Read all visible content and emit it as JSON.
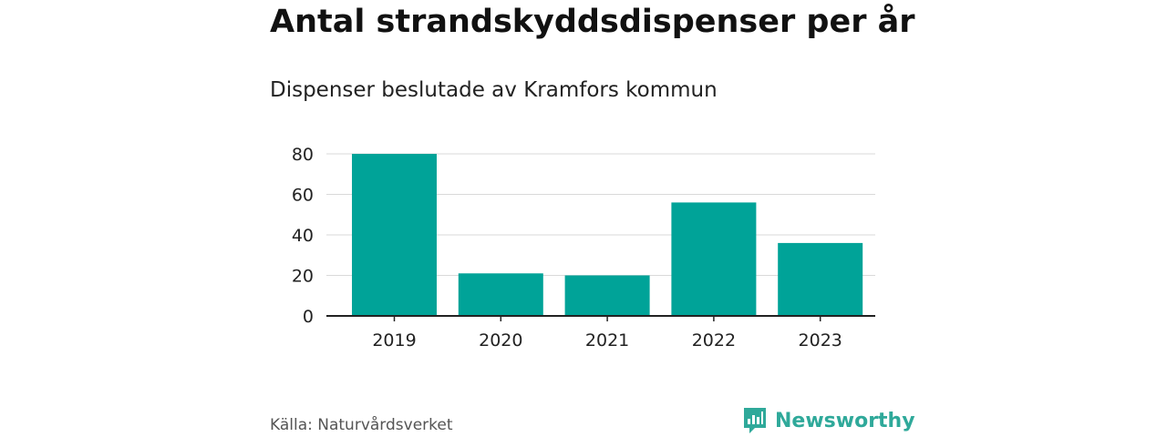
{
  "header": {
    "title": "Antal strandskyddsdispenser per år",
    "subtitle": "Dispenser beslutade av Kramfors kommun"
  },
  "footer": {
    "source": "Källa: Naturvårdsverket",
    "brand": "Newsworthy",
    "brand_icon": "bar-chart-logo-icon"
  },
  "colors": {
    "bar": "#00a398",
    "grid": "#d9d9d9",
    "axis": "#222222",
    "brand": "#2fa99a"
  },
  "chart_data": {
    "type": "bar",
    "categories": [
      "2019",
      "2020",
      "2021",
      "2022",
      "2023"
    ],
    "values": [
      80,
      21,
      20,
      56,
      36
    ],
    "ylim": [
      0,
      80
    ],
    "yticks": [
      0,
      20,
      40,
      60,
      80
    ],
    "grid": true
  }
}
